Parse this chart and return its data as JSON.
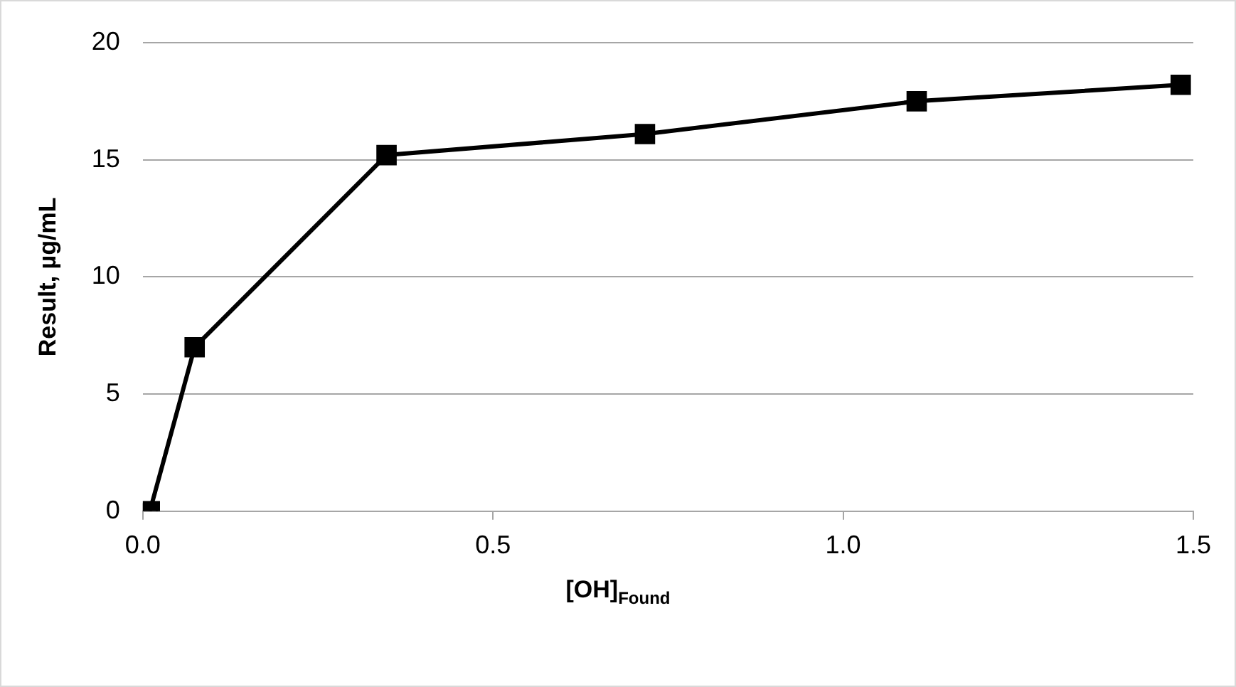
{
  "chart_data": {
    "type": "line",
    "xlabel": "[OH]$_{Found}$",
    "ylabel": "Result, µg/mL",
    "x": [
      0.01,
      0.074,
      0.348,
      0.717,
      1.105,
      1.482
    ],
    "series": [
      {
        "color": "#000000",
        "values": [
          0,
          7.0,
          15.2,
          16.1,
          17.5,
          18.2
        ]
      }
    ],
    "xlim": [
      0,
      1.5
    ],
    "xticks": [
      {
        "value": 0,
        "label": "0.0"
      },
      {
        "value": 0.5,
        "label": "0.5"
      },
      {
        "value": 1,
        "label": "1.0"
      },
      {
        "value": 1.5,
        "label": "1.5"
      }
    ],
    "ylim": [
      0,
      20
    ],
    "yticks": [
      0,
      5,
      10,
      15,
      20
    ],
    "grid": "y",
    "legend": false,
    "marker": "square",
    "line_style": "solid"
  }
}
